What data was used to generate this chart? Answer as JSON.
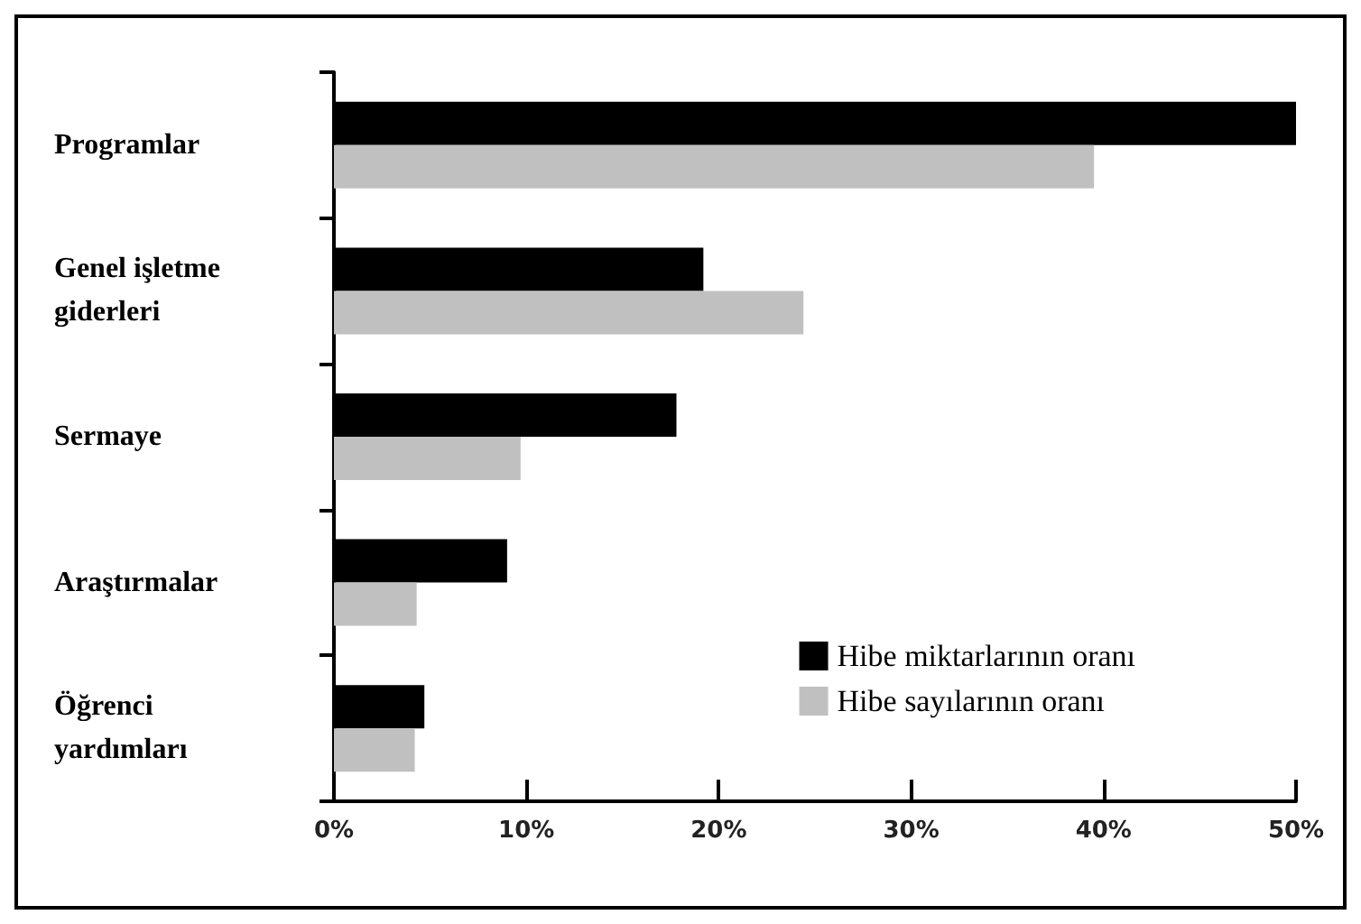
{
  "chart_data": {
    "type": "bar",
    "orientation": "horizontal",
    "categories": [
      "Programlar",
      "Genel işletme giderleri",
      "Sermaye",
      "Araştırmalar",
      "Öğrenci yardımları"
    ],
    "series": [
      {
        "name": "Hibe miktarlarının oranı",
        "color": "#000000",
        "values": [
          50,
          19.2,
          17.8,
          9,
          4.7
        ]
      },
      {
        "name": "Hibe sayılarının oranı",
        "color": "#c0c0c0",
        "values": [
          39.5,
          24.4,
          9.7,
          4.3,
          4.2
        ]
      }
    ],
    "xlim": [
      0,
      50
    ],
    "xticks": [
      {
        "value": 0,
        "label": "0%"
      },
      {
        "value": 10,
        "label": "10%"
      },
      {
        "value": 20,
        "label": "20%"
      },
      {
        "value": 30,
        "label": "30%"
      },
      {
        "value": 40,
        "label": "40%"
      },
      {
        "value": 50,
        "label": "50%"
      }
    ],
    "grid": false,
    "legend": "bottom right"
  }
}
